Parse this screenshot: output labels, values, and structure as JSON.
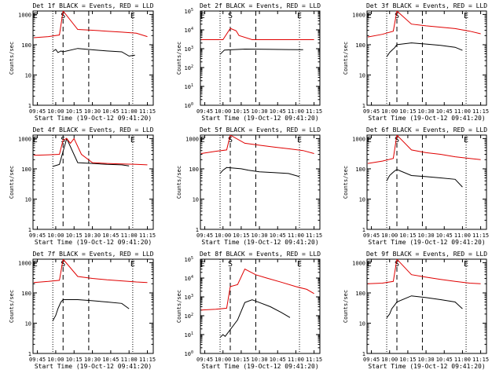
{
  "x_ticks": [
    "09:45",
    "10:00",
    "10:15",
    "10:30",
    "10:45",
    "11:00",
    "11:15"
  ],
  "x_label": "Start Time (19-Oct-12 09:41:20)",
  "y_label": "Counts/sec",
  "colors": {
    "events": "#000000",
    "lld": "#e00000",
    "axes": "#000000"
  },
  "chart_data": [
    {
      "type": "line",
      "title": "Det 1f BLACK = Events, RED = LLD",
      "y_ticks": [
        "1",
        "10",
        "100",
        "1000"
      ],
      "ylim": [
        1,
        1300
      ],
      "log_y": true,
      "marker_letters": [
        "E",
        "S",
        "E"
      ],
      "series": [
        {
          "name": "Events",
          "values": [
            [
              9.96,
              60
            ],
            [
              10.0,
              70
            ],
            [
              10.03,
              55
            ],
            [
              10.07,
              62
            ],
            [
              10.1,
              58
            ],
            [
              10.3,
              75
            ],
            [
              10.5,
              68
            ],
            [
              10.7,
              62
            ],
            [
              10.9,
              58
            ],
            [
              11.0,
              42
            ],
            [
              11.08,
              45
            ]
          ]
        },
        {
          "name": "LLD",
          "values": [
            [
              9.7,
              170
            ],
            [
              9.9,
              185
            ],
            [
              10.05,
              210
            ],
            [
              10.1,
              1300
            ],
            [
              10.3,
              320
            ],
            [
              10.5,
              300
            ],
            [
              10.7,
              280
            ],
            [
              10.9,
              260
            ],
            [
              11.1,
              240
            ],
            [
              11.25,
              185
            ]
          ]
        }
      ]
    },
    {
      "type": "line",
      "title": "Det 2f BLACK = Events, RED = LLD",
      "y_ticks": [
        "10^0",
        "10^1",
        "10^2",
        "10^3",
        "10^4",
        "10^5"
      ],
      "ylim": [
        1,
        100000
      ],
      "log_y": true,
      "marker_letters": [
        "E",
        "S",
        "E"
      ],
      "series": [
        {
          "name": "Events",
          "values": [
            [
              9.96,
              500
            ],
            [
              10.02,
              850
            ],
            [
              10.3,
              950
            ],
            [
              10.6,
              930
            ],
            [
              10.9,
              900
            ],
            [
              11.1,
              880
            ]
          ]
        },
        {
          "name": "LLD",
          "values": [
            [
              9.7,
              3000
            ],
            [
              10.0,
              3000
            ],
            [
              10.1,
              12000
            ],
            [
              10.18,
              9000
            ],
            [
              10.22,
              5000
            ],
            [
              10.4,
              3000
            ],
            [
              10.8,
              3000
            ],
            [
              11.25,
              3000
            ]
          ]
        }
      ]
    },
    {
      "type": "line",
      "title": "Det 3f BLACK = Events, RED = LLD",
      "y_ticks": [
        "1",
        "10",
        "100",
        "1000"
      ],
      "ylim": [
        1,
        1300
      ],
      "log_y": true,
      "marker_letters": [
        "E",
        "S",
        "E"
      ],
      "series": [
        {
          "name": "Events",
          "values": [
            [
              9.96,
              40
            ],
            [
              10.0,
              55
            ],
            [
              10.03,
              65
            ],
            [
              10.07,
              80
            ],
            [
              10.1,
              100
            ],
            [
              10.3,
              115
            ],
            [
              10.5,
              105
            ],
            [
              10.7,
              95
            ],
            [
              10.9,
              82
            ],
            [
              11.0,
              65
            ]
          ]
        },
        {
          "name": "LLD",
          "values": [
            [
              9.7,
              180
            ],
            [
              9.9,
              220
            ],
            [
              10.05,
              280
            ],
            [
              10.1,
              1300
            ],
            [
              10.3,
              480
            ],
            [
              10.5,
              420
            ],
            [
              10.7,
              380
            ],
            [
              10.9,
              340
            ],
            [
              11.1,
              280
            ],
            [
              11.25,
              230
            ]
          ]
        }
      ]
    },
    {
      "type": "line",
      "title": "Det 4f BLACK = Events, RED = LLD",
      "y_ticks": [
        "1",
        "10",
        "100",
        "1000"
      ],
      "ylim": [
        1,
        1300
      ],
      "log_y": true,
      "marker_letters": [
        "E",
        "S",
        "E"
      ],
      "series": [
        {
          "name": "Events",
          "values": [
            [
              9.96,
              120
            ],
            [
              10.05,
              140
            ],
            [
              10.15,
              1000
            ],
            [
              10.3,
              160
            ],
            [
              10.5,
              150
            ],
            [
              10.7,
              140
            ],
            [
              10.9,
              135
            ],
            [
              11.0,
              125
            ]
          ]
        },
        {
          "name": "LLD",
          "values": [
            [
              9.7,
              280
            ],
            [
              9.9,
              290
            ],
            [
              10.05,
              300
            ],
            [
              10.1,
              900
            ],
            [
              10.15,
              1000
            ],
            [
              10.2,
              700
            ],
            [
              10.25,
              1000
            ],
            [
              10.35,
              300
            ],
            [
              10.5,
              160
            ],
            [
              10.7,
              150
            ],
            [
              10.9,
              145
            ],
            [
              11.1,
              140
            ],
            [
              11.25,
              135
            ]
          ]
        }
      ]
    },
    {
      "type": "line",
      "title": "Det 5f BLACK = Events, RED = LLD",
      "y_ticks": [
        "1",
        "10",
        "100",
        "1000"
      ],
      "ylim": [
        1,
        1300
      ],
      "log_y": true,
      "marker_letters": [
        "E",
        "S",
        "E"
      ],
      "series": [
        {
          "name": "Events",
          "values": [
            [
              9.96,
              70
            ],
            [
              10.0,
              90
            ],
            [
              10.05,
              110
            ],
            [
              10.25,
              100
            ],
            [
              10.35,
              90
            ],
            [
              10.5,
              80
            ],
            [
              10.7,
              75
            ],
            [
              10.9,
              70
            ],
            [
              11.05,
              55
            ]
          ]
        },
        {
          "name": "LLD",
          "values": [
            [
              9.7,
              320
            ],
            [
              9.9,
              380
            ],
            [
              10.05,
              420
            ],
            [
              10.1,
              1300
            ],
            [
              10.3,
              700
            ],
            [
              10.5,
              600
            ],
            [
              10.7,
              520
            ],
            [
              10.9,
              460
            ],
            [
              11.1,
              400
            ],
            [
              11.25,
              320
            ]
          ]
        }
      ]
    },
    {
      "type": "line",
      "title": "Det 6f BLACK = Events, RED = LLD",
      "y_ticks": [
        "1",
        "10",
        "100",
        "1000"
      ],
      "ylim": [
        1,
        1300
      ],
      "log_y": true,
      "marker_letters": [
        "E",
        "S",
        "E"
      ],
      "series": [
        {
          "name": "Events",
          "values": [
            [
              9.96,
              40
            ],
            [
              10.0,
              60
            ],
            [
              10.03,
              70
            ],
            [
              10.07,
              85
            ],
            [
              10.1,
              95
            ],
            [
              10.3,
              60
            ],
            [
              10.5,
              55
            ],
            [
              10.7,
              50
            ],
            [
              10.9,
              45
            ],
            [
              11.0,
              25
            ]
          ]
        },
        {
          "name": "LLD",
          "values": [
            [
              9.7,
              150
            ],
            [
              9.9,
              180
            ],
            [
              10.05,
              220
            ],
            [
              10.1,
              1300
            ],
            [
              10.3,
              420
            ],
            [
              10.5,
              340
            ],
            [
              10.7,
              300
            ],
            [
              10.9,
              250
            ],
            [
              11.1,
              220
            ],
            [
              11.25,
              200
            ]
          ]
        }
      ]
    },
    {
      "type": "line",
      "title": "Det 7f BLACK = Events, RED = LLD",
      "y_ticks": [
        "1",
        "10",
        "100",
        "1000"
      ],
      "ylim": [
        1,
        1300
      ],
      "log_y": true,
      "marker_letters": [
        "E",
        "S",
        "E"
      ],
      "series": [
        {
          "name": "Events",
          "values": [
            [
              9.96,
              12
            ],
            [
              10.0,
              18
            ],
            [
              10.03,
              30
            ],
            [
              10.07,
              50
            ],
            [
              10.1,
              60
            ],
            [
              10.3,
              60
            ],
            [
              10.5,
              55
            ],
            [
              10.7,
              50
            ],
            [
              10.9,
              45
            ],
            [
              11.0,
              30
            ]
          ]
        },
        {
          "name": "LLD",
          "values": [
            [
              9.7,
              220
            ],
            [
              9.9,
              240
            ],
            [
              10.05,
              260
            ],
            [
              10.1,
              1300
            ],
            [
              10.3,
              350
            ],
            [
              10.5,
              300
            ],
            [
              10.7,
              270
            ],
            [
              10.9,
              250
            ],
            [
              11.1,
              230
            ],
            [
              11.25,
              220
            ]
          ]
        }
      ]
    },
    {
      "type": "line",
      "title": "Det 8f BLACK = Events, RED = LLD",
      "y_ticks": [
        "10^0",
        "10^1",
        "10^2",
        "10^3",
        "10^4",
        "10^5"
      ],
      "ylim": [
        1,
        100000
      ],
      "log_y": true,
      "marker_letters": [
        "E",
        "S",
        "E"
      ],
      "series": [
        {
          "name": "Events",
          "values": [
            [
              9.96,
              7
            ],
            [
              10.0,
              10
            ],
            [
              10.03,
              8
            ],
            [
              10.2,
              60
            ],
            [
              10.3,
              500
            ],
            [
              10.4,
              700
            ],
            [
              10.5,
              500
            ],
            [
              10.65,
              300
            ],
            [
              10.8,
              150
            ],
            [
              10.92,
              80
            ]
          ]
        },
        {
          "name": "LLD",
          "values": [
            [
              9.7,
              200
            ],
            [
              9.9,
              220
            ],
            [
              10.05,
              250
            ],
            [
              10.1,
              3500
            ],
            [
              10.2,
              4500
            ],
            [
              10.3,
              30000
            ],
            [
              10.45,
              15000
            ],
            [
              10.6,
              10000
            ],
            [
              10.8,
              6000
            ],
            [
              11.0,
              3500
            ],
            [
              11.15,
              2500
            ],
            [
              11.25,
              1500
            ]
          ]
        }
      ]
    },
    {
      "type": "line",
      "title": "Det 9f BLACK = Events, RED = LLD",
      "y_ticks": [
        "1",
        "10",
        "100",
        "1000"
      ],
      "ylim": [
        1,
        1300
      ],
      "log_y": true,
      "marker_letters": [
        "E",
        "S",
        "E"
      ],
      "series": [
        {
          "name": "Events",
          "values": [
            [
              9.96,
              15
            ],
            [
              10.0,
              20
            ],
            [
              10.03,
              30
            ],
            [
              10.07,
              40
            ],
            [
              10.1,
              50
            ],
            [
              10.3,
              80
            ],
            [
              10.5,
              70
            ],
            [
              10.7,
              60
            ],
            [
              10.9,
              50
            ],
            [
              11.0,
              30
            ]
          ]
        },
        {
          "name": "LLD",
          "values": [
            [
              9.7,
              200
            ],
            [
              9.9,
              210
            ],
            [
              10.05,
              240
            ],
            [
              10.1,
              1300
            ],
            [
              10.3,
              400
            ],
            [
              10.5,
              330
            ],
            [
              10.7,
              280
            ],
            [
              10.9,
              240
            ],
            [
              11.1,
              210
            ],
            [
              11.25,
              200
            ]
          ]
        }
      ]
    }
  ]
}
